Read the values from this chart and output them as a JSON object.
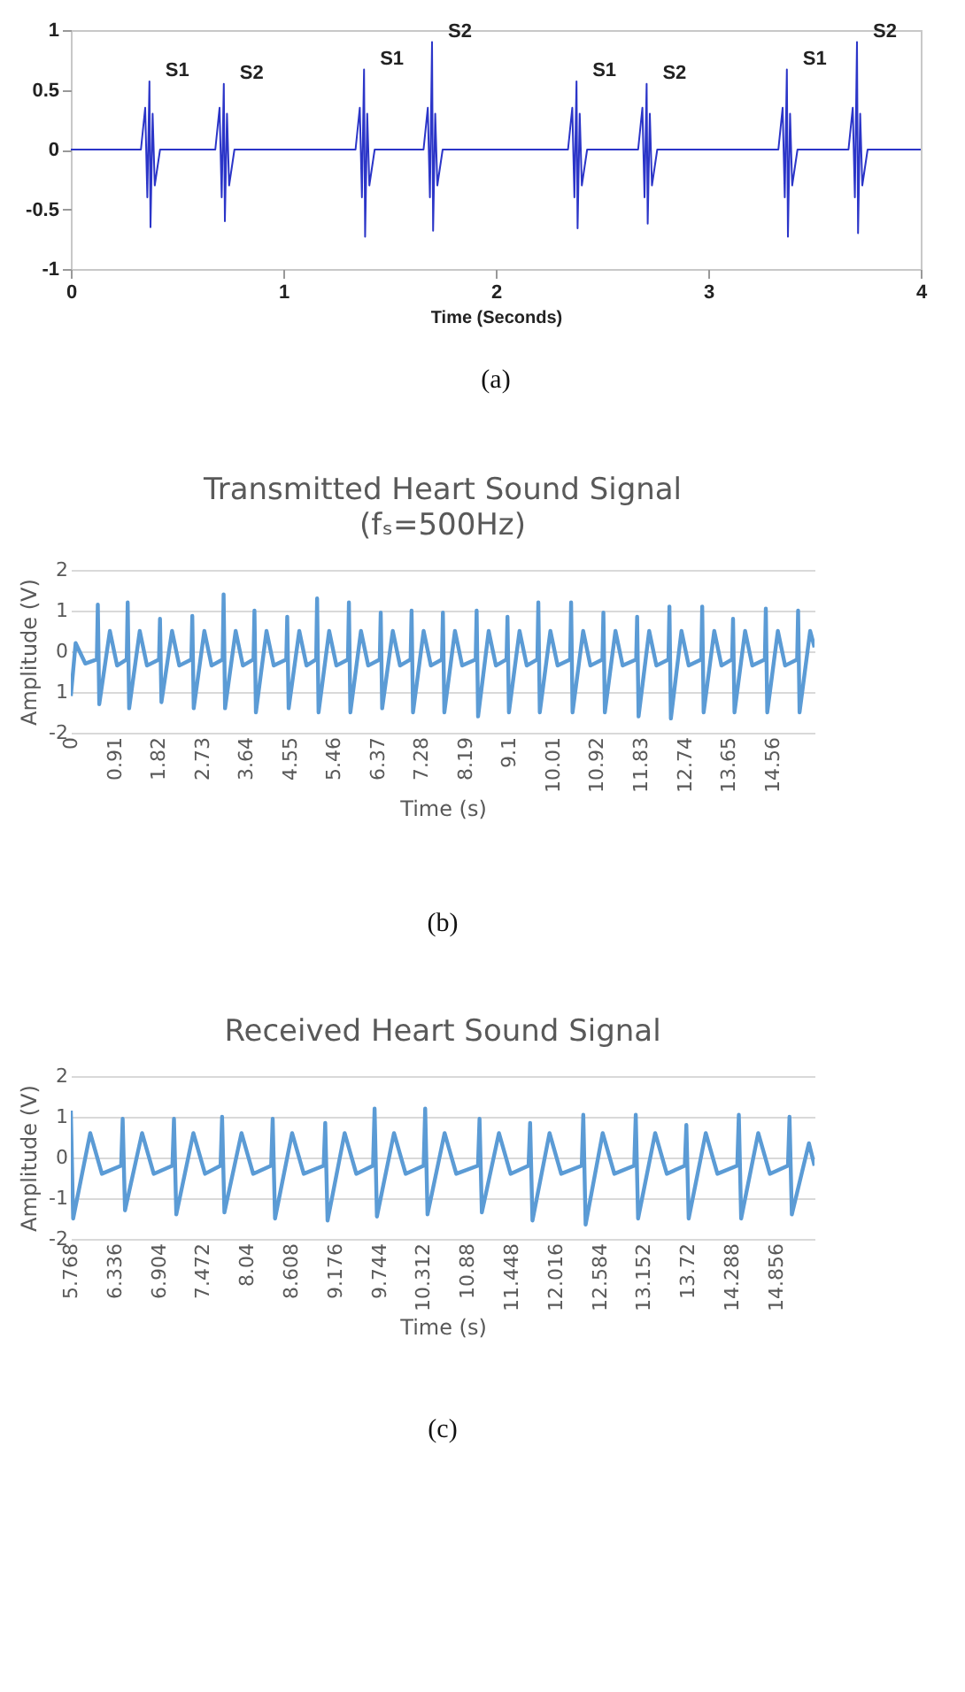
{
  "chart_data": [
    {
      "type": "line",
      "xlabel": "Time (Seconds)",
      "xlim": [
        0,
        4
      ],
      "xticks": [
        0,
        1,
        2,
        3,
        4
      ],
      "ylim": [
        -1,
        1
      ],
      "yticks": [
        -1,
        -0.5,
        0,
        0.5,
        1
      ],
      "grid": false,
      "series": [
        {
          "color": "#2b35c8",
          "x": [
            0,
            0.33,
            0.35,
            0.36,
            0.37,
            0.375,
            0.385,
            0.395,
            0.42,
            0.68,
            0.7,
            0.71,
            0.72,
            0.725,
            0.735,
            0.745,
            0.77,
            1.34,
            1.36,
            1.37,
            1.38,
            1.385,
            1.395,
            1.405,
            1.43,
            1.66,
            1.68,
            1.69,
            1.7,
            1.705,
            1.715,
            1.725,
            1.75,
            2.34,
            2.36,
            2.37,
            2.38,
            2.385,
            2.395,
            2.405,
            2.43,
            2.67,
            2.69,
            2.7,
            2.71,
            2.715,
            2.725,
            2.735,
            2.76,
            3.33,
            3.35,
            3.36,
            3.37,
            3.375,
            3.385,
            3.395,
            3.42,
            3.66,
            3.68,
            3.69,
            3.7,
            3.705,
            3.715,
            3.725,
            3.75,
            4
          ],
          "values": [
            0,
            0,
            0.35,
            -0.4,
            0.57,
            -0.65,
            0.3,
            -0.3,
            0,
            0,
            0.35,
            -0.4,
            0.55,
            -0.6,
            0.3,
            -0.3,
            0,
            0,
            0.35,
            -0.4,
            0.67,
            -0.73,
            0.3,
            -0.3,
            0,
            0,
            0.35,
            -0.4,
            0.9,
            -0.68,
            0.3,
            -0.3,
            0,
            0,
            0.35,
            -0.4,
            0.57,
            -0.66,
            0.3,
            -0.3,
            0,
            0,
            0.35,
            -0.4,
            0.55,
            -0.62,
            0.3,
            -0.3,
            0,
            0,
            0.35,
            -0.4,
            0.67,
            -0.73,
            0.3,
            -0.3,
            0,
            0,
            0.35,
            -0.4,
            0.9,
            -0.7,
            0.3,
            -0.3,
            0,
            0
          ]
        }
      ],
      "annotations": [
        {
          "text": "S1",
          "x": 0.37,
          "y": 0.57
        },
        {
          "text": "S2",
          "x": 0.72,
          "y": 0.55
        },
        {
          "text": "S1",
          "x": 1.38,
          "y": 0.67
        },
        {
          "text": "S2",
          "x": 1.7,
          "y": 0.9
        },
        {
          "text": "S1",
          "x": 2.38,
          "y": 0.57
        },
        {
          "text": "S2",
          "x": 2.71,
          "y": 0.55
        },
        {
          "text": "S1",
          "x": 3.37,
          "y": 0.67
        },
        {
          "text": "S2",
          "x": 3.7,
          "y": 0.9
        },
        "(a)"
      ]
    },
    {
      "type": "line",
      "title": "Transmitted Heart Sound Signal",
      "subtitle": "(fₛ=500Hz)",
      "xlabel": "Time (s)",
      "ylabel": "Amplitude (V)",
      "xlim": [
        0,
        15.43
      ],
      "xticks": [
        0,
        0.91,
        1.82,
        2.73,
        3.64,
        4.55,
        5.46,
        6.37,
        7.28,
        8.19,
        9.1,
        10.01,
        10.92,
        11.83,
        12.74,
        13.65,
        14.56
      ],
      "ylim": [
        -2,
        2
      ],
      "yticks": [
        -2,
        {
          "value": -1,
          "label": "1"
        },
        0,
        1,
        2
      ],
      "grid": "y",
      "series": [
        {
          "color": "#5b9bd5",
          "x": [
            0,
            0.1,
            0.3,
            0.54,
            0.56,
            0.59,
            0.81,
            0.96,
            1.16,
            1.18,
            1.21,
            1.43,
            1.58,
            1.83,
            1.85,
            1.88,
            2.1,
            2.25,
            2.5,
            2.52,
            2.55,
            2.77,
            2.92,
            3.15,
            3.17,
            3.2,
            3.42,
            3.57,
            3.79,
            3.81,
            3.84,
            4.06,
            4.21,
            4.47,
            4.49,
            4.52,
            4.74,
            4.89,
            5.09,
            5.11,
            5.14,
            5.36,
            5.51,
            5.75,
            5.77,
            5.8,
            6.02,
            6.17,
            6.41,
            6.43,
            6.46,
            6.68,
            6.83,
            7.05,
            7.07,
            7.1,
            7.32,
            7.47,
            7.7,
            7.72,
            7.75,
            7.97,
            8.12,
            8.4,
            8.42,
            8.45,
            8.67,
            8.82,
            9.04,
            9.06,
            9.09,
            9.31,
            9.46,
            9.68,
            9.7,
            9.73,
            9.95,
            10.1,
            10.36,
            10.38,
            10.41,
            10.63,
            10.78,
            11.03,
            11.05,
            11.08,
            11.3,
            11.45,
            11.73,
            11.75,
            11.78,
            12.0,
            12.15,
            12.4,
            12.42,
            12.45,
            12.67,
            12.82,
            13.08,
            13.1,
            13.13,
            13.35,
            13.5,
            13.72,
            13.74,
            13.77,
            13.99,
            14.14,
            14.4,
            14.42,
            14.45,
            14.67,
            14.82,
            15.07,
            15.09,
            15.12,
            15.34,
            15.43
          ],
          "values": [
            -1.1,
            0.2,
            -0.3,
            -0.2,
            1.15,
            -1.3,
            0.5,
            -0.35,
            -0.2,
            1.2,
            -1.4,
            0.5,
            -0.35,
            -0.2,
            0.8,
            -1.25,
            0.5,
            -0.35,
            -0.2,
            0.87,
            -1.4,
            0.5,
            -0.35,
            -0.2,
            1.4,
            -1.4,
            0.5,
            -0.35,
            -0.2,
            1.0,
            -1.5,
            0.5,
            -0.35,
            -0.2,
            0.85,
            -1.4,
            0.5,
            -0.35,
            -0.2,
            1.3,
            -1.5,
            0.5,
            -0.35,
            -0.2,
            1.2,
            -1.5,
            0.5,
            -0.35,
            -0.2,
            0.95,
            -1.4,
            0.5,
            -0.35,
            -0.2,
            1.0,
            -1.5,
            0.5,
            -0.35,
            -0.2,
            0.95,
            -1.5,
            0.5,
            -0.35,
            -0.2,
            1.0,
            -1.6,
            0.5,
            -0.35,
            -0.2,
            0.85,
            -1.5,
            0.5,
            -0.35,
            -0.2,
            1.2,
            -1.5,
            0.5,
            -0.35,
            -0.2,
            1.2,
            -1.5,
            0.5,
            -0.35,
            -0.2,
            0.95,
            -1.5,
            0.5,
            -0.35,
            -0.2,
            0.85,
            -1.6,
            0.5,
            -0.35,
            -0.2,
            1.1,
            -1.65,
            0.5,
            -0.35,
            -0.2,
            1.1,
            -1.5,
            0.5,
            -0.35,
            -0.2,
            0.8,
            -1.5,
            0.5,
            -0.35,
            -0.2,
            1.05,
            -1.5,
            0.5,
            -0.35,
            -0.2,
            1.0,
            -1.5,
            0.5,
            0.1
          ]
        }
      ],
      "annotations": [
        "(b)"
      ]
    },
    {
      "type": "line",
      "title": "Received Heart Sound Signal",
      "xlabel": "Time (s)",
      "ylabel": "Amplitude (V)",
      "xlim": [
        5.768,
        15.35
      ],
      "xticks": [
        5.768,
        6.336,
        6.904,
        7.472,
        8.04,
        8.608,
        9.176,
        9.744,
        10.312,
        10.88,
        11.448,
        12.016,
        12.584,
        13.152,
        13.72,
        14.288,
        14.856
      ],
      "ylim": [
        -2,
        2
      ],
      "yticks": [
        -2,
        -1,
        0,
        1,
        2
      ],
      "grid": "y",
      "series": [
        {
          "color": "#5b9bd5",
          "x": [
            5.768,
            5.798,
            6.018,
            6.168,
            6.416,
            6.436,
            6.466,
            6.686,
            6.836,
            7.077,
            7.097,
            7.127,
            7.347,
            7.497,
            7.697,
            7.717,
            7.747,
            7.967,
            8.117,
            8.349,
            8.369,
            8.399,
            8.619,
            8.769,
            9.026,
            9.046,
            9.076,
            9.296,
            9.446,
            9.662,
            9.682,
            9.712,
            9.932,
            10.082,
            10.314,
            10.334,
            10.364,
            10.584,
            10.734,
            11.014,
            11.034,
            11.064,
            11.284,
            11.434,
            11.666,
            11.686,
            11.716,
            11.936,
            12.086,
            12.351,
            12.371,
            12.401,
            12.621,
            12.771,
            13.027,
            13.047,
            13.077,
            13.297,
            13.447,
            13.679,
            13.699,
            13.729,
            13.949,
            14.099,
            14.355,
            14.375,
            14.405,
            14.625,
            14.775,
            15.008,
            15.028,
            15.058,
            15.278,
            15.35
          ],
          "values": [
            1.15,
            -1.5,
            0.6,
            -0.4,
            -0.2,
            0.95,
            -1.3,
            0.6,
            -0.4,
            -0.2,
            0.95,
            -1.4,
            0.6,
            -0.4,
            -0.2,
            1.0,
            -1.35,
            0.6,
            -0.4,
            -0.2,
            0.95,
            -1.5,
            0.6,
            -0.4,
            -0.2,
            0.85,
            -1.55,
            0.6,
            -0.4,
            -0.2,
            1.2,
            -1.45,
            0.6,
            -0.4,
            -0.2,
            1.2,
            -1.4,
            0.6,
            -0.4,
            -0.2,
            0.95,
            -1.35,
            0.6,
            -0.4,
            -0.2,
            0.85,
            -1.55,
            0.6,
            -0.4,
            -0.2,
            1.05,
            -1.65,
            0.6,
            -0.4,
            -0.2,
            1.05,
            -1.5,
            0.6,
            -0.4,
            -0.2,
            0.8,
            -1.5,
            0.6,
            -0.4,
            -0.2,
            1.05,
            -1.5,
            0.6,
            -0.4,
            -0.2,
            1.0,
            -1.4,
            0.35,
            -0.2
          ]
        }
      ],
      "annotations": [
        "(c)"
      ]
    }
  ]
}
